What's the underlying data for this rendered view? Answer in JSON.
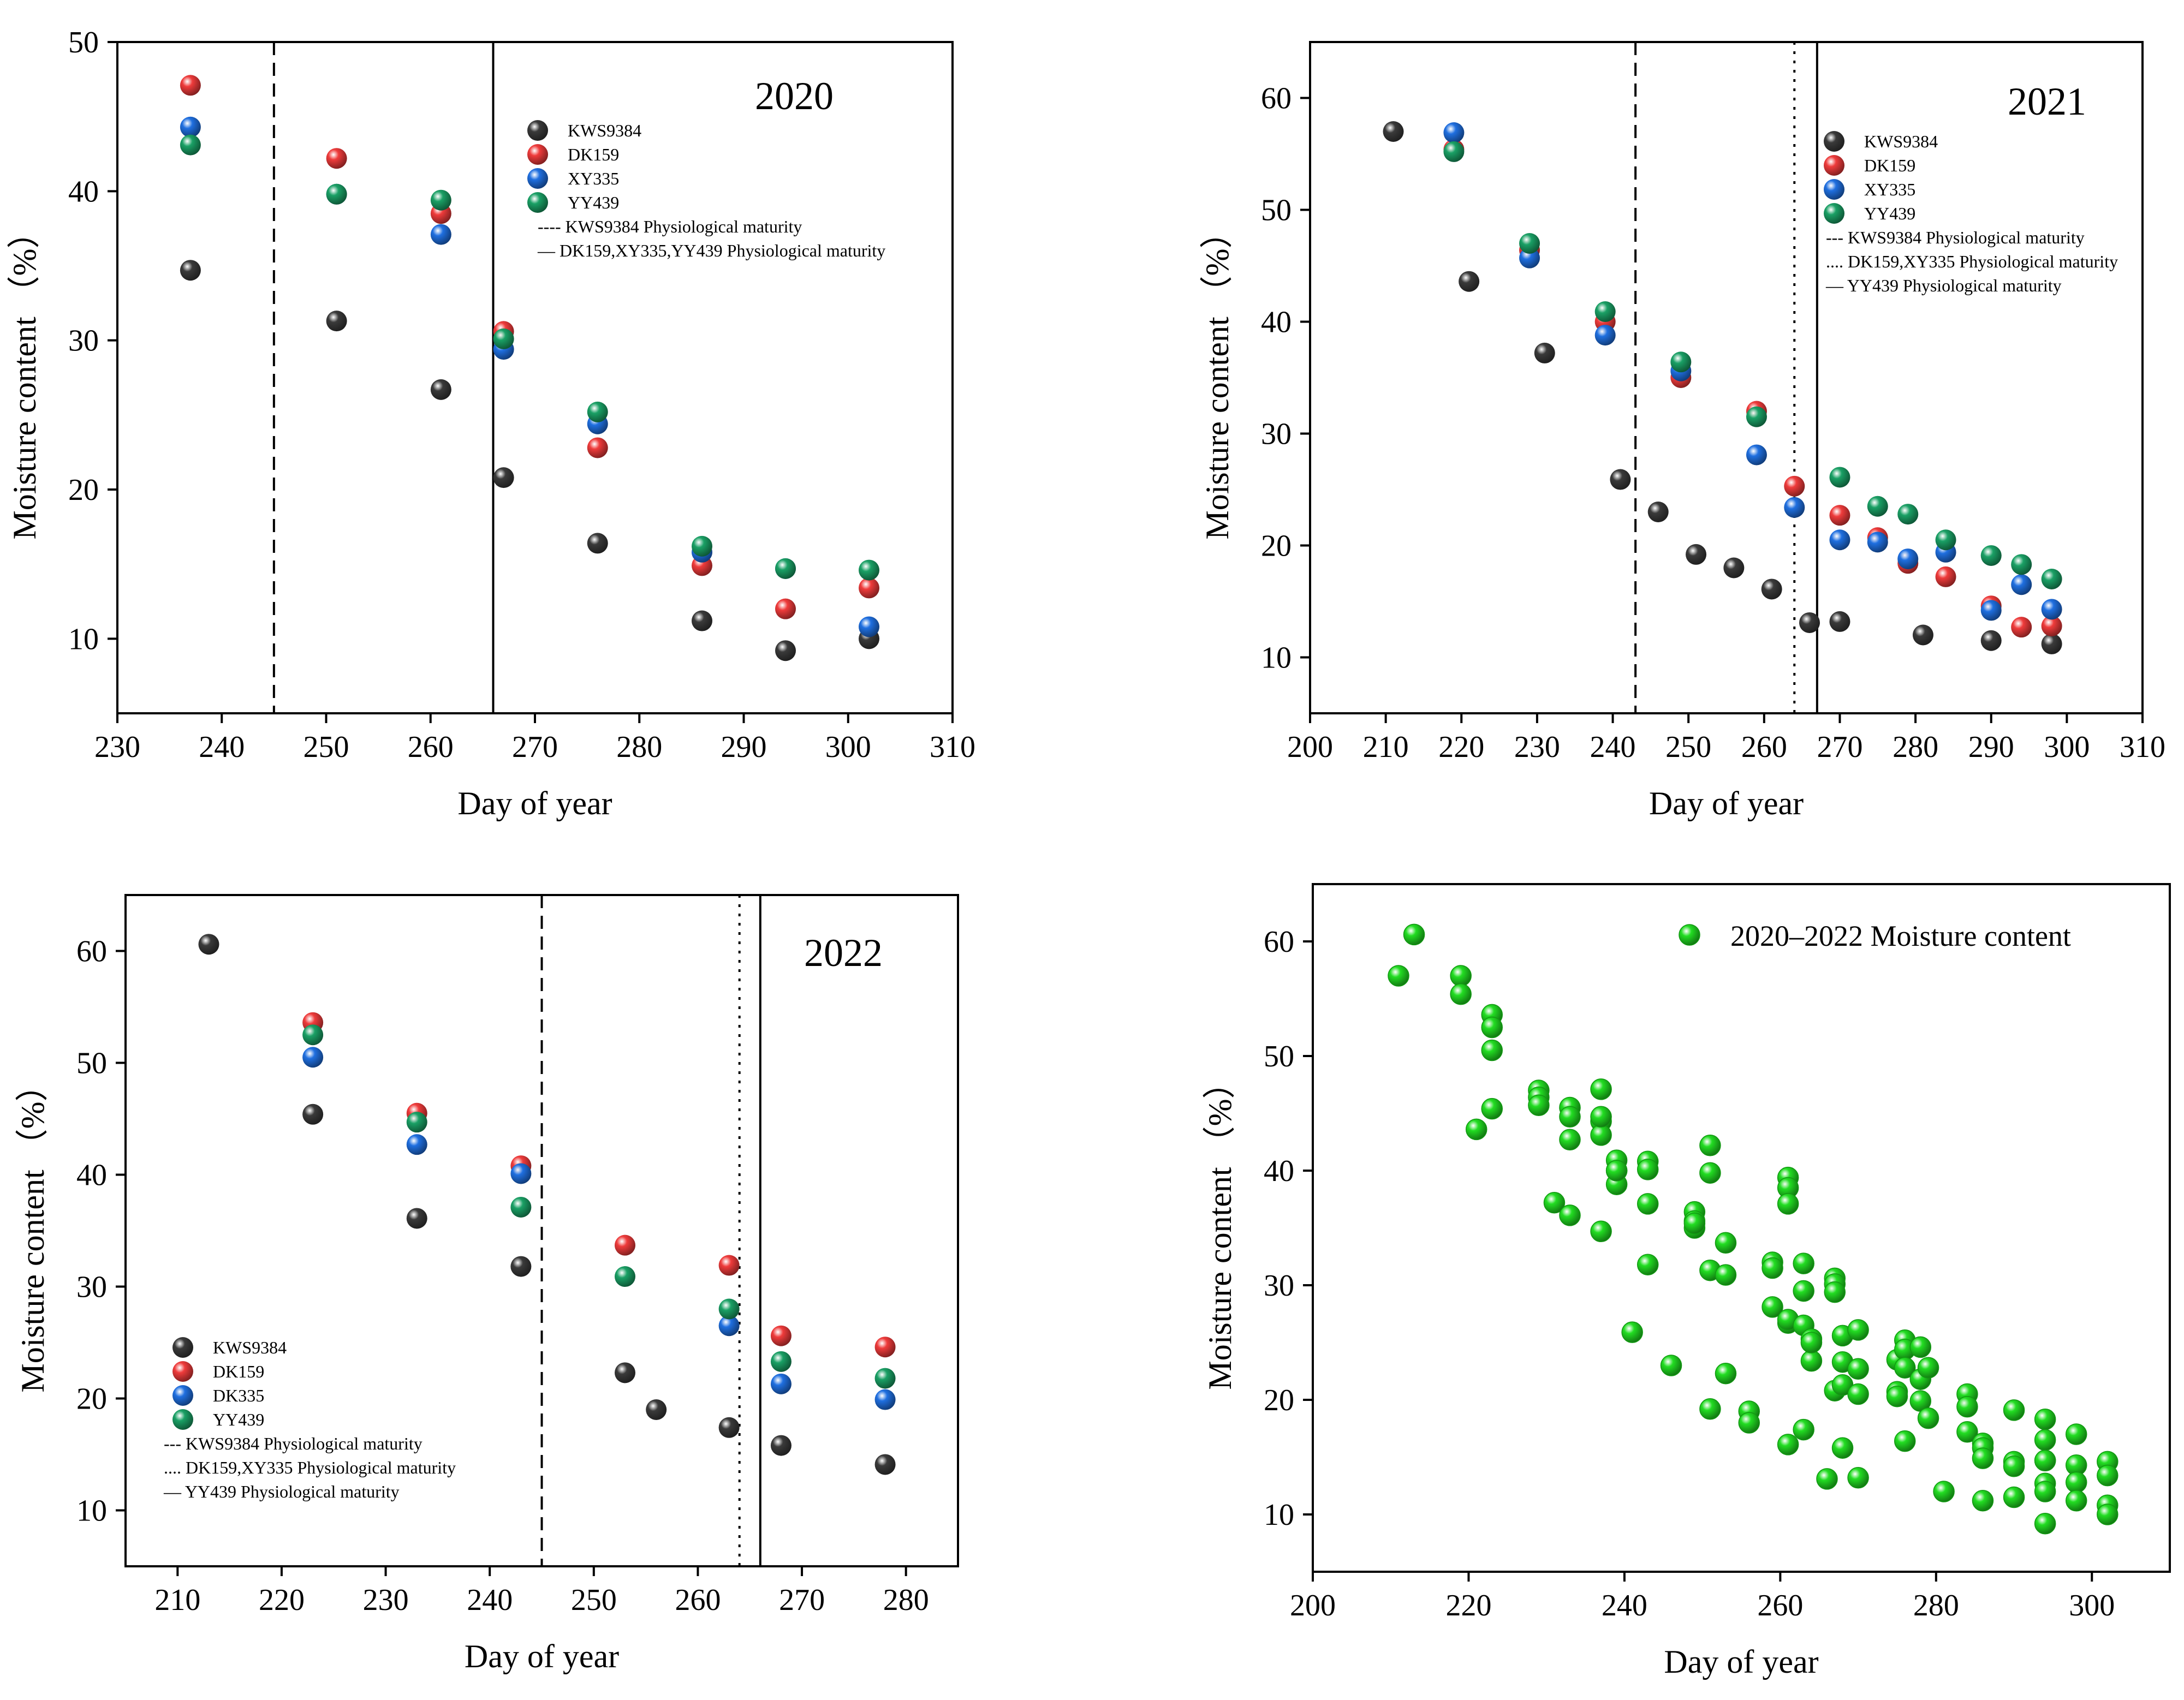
{
  "colors": {
    "KWS9384": "#3a3a3a",
    "DK159": "#ef3b3b",
    "XY335": "#1f6fe0",
    "DK335": "#1f6fe0",
    "YY439": "#1aa065",
    "combined": "#22dd22"
  },
  "chart_data": [
    {
      "type": "scatter",
      "year_label": "2020",
      "xlabel": "Day of year",
      "ylabel": "Moisture content （%）",
      "xlim": [
        230,
        310
      ],
      "ylim": [
        5,
        50
      ],
      "xticks": [
        "230",
        "240",
        "250",
        "260",
        "270",
        "280",
        "290",
        "300",
        "310"
      ],
      "yticks": [
        "10",
        "20",
        "30",
        "40",
        "50"
      ],
      "legend_position": "upper-right",
      "series": [
        {
          "name": "KWS9384",
          "x": [
            237,
            251,
            261,
            267,
            276,
            286,
            294,
            302
          ],
          "y": [
            34.7,
            31.3,
            26.7,
            20.8,
            16.4,
            11.2,
            9.2,
            10.0
          ]
        },
        {
          "name": "DK159",
          "x": [
            237,
            251,
            261,
            267,
            276,
            286,
            294,
            302
          ],
          "y": [
            47.1,
            42.2,
            38.5,
            30.6,
            22.8,
            14.9,
            12.0,
            13.4
          ]
        },
        {
          "name": "XY335",
          "x": [
            237,
            251,
            261,
            267,
            276,
            286,
            294,
            302
          ],
          "y": [
            44.3,
            39.8,
            37.1,
            29.4,
            24.4,
            15.8,
            14.7,
            10.8
          ]
        },
        {
          "name": "YY439",
          "x": [
            237,
            251,
            261,
            267,
            276,
            286,
            294,
            302
          ],
          "y": [
            43.1,
            39.8,
            39.4,
            30.1,
            25.2,
            16.2,
            14.7,
            14.6
          ]
        }
      ],
      "vlines": [
        {
          "x": 245,
          "style": "dashed",
          "label": "---- KWS9384 Physiological maturity"
        },
        {
          "x": 266,
          "style": "solid",
          "label": "— DK159,XY335,YY439 Physiological maturity"
        }
      ]
    },
    {
      "type": "scatter",
      "year_label": "2021",
      "xlabel": "Day of year",
      "ylabel": "Moisture content （%）",
      "xlim": [
        200,
        310
      ],
      "ylim": [
        5,
        65
      ],
      "xticks": [
        "200",
        "210",
        "220",
        "230",
        "240",
        "250",
        "260",
        "270",
        "280",
        "290",
        "300",
        "310"
      ],
      "yticks": [
        "10",
        "20",
        "30",
        "40",
        "50",
        "60"
      ],
      "legend_position": "upper-right",
      "series": [
        {
          "name": "KWS9384",
          "x": [
            211,
            221,
            231,
            241,
            246,
            251,
            256,
            261,
            266,
            270,
            281,
            290,
            298
          ],
          "y": [
            57.0,
            43.6,
            37.2,
            25.9,
            23.0,
            19.2,
            18.0,
            16.1,
            13.1,
            13.2,
            12.0,
            11.5,
            11.2
          ]
        },
        {
          "name": "DK159",
          "x": [
            219,
            229,
            239,
            249,
            259,
            264,
            270,
            275,
            279,
            284,
            290,
            294,
            298
          ],
          "y": [
            55.4,
            46.4,
            40.0,
            35.0,
            32.0,
            25.3,
            22.7,
            20.7,
            18.4,
            17.2,
            14.6,
            12.7,
            12.8
          ]
        },
        {
          "name": "XY335",
          "x": [
            219,
            229,
            239,
            249,
            259,
            264,
            270,
            275,
            279,
            284,
            290,
            294,
            298
          ],
          "y": [
            56.9,
            45.7,
            38.8,
            35.6,
            28.1,
            23.4,
            20.5,
            20.3,
            18.8,
            19.4,
            14.2,
            16.5,
            14.3
          ]
        },
        {
          "name": "YY439",
          "x": [
            219,
            229,
            239,
            249,
            259,
            270,
            275,
            279,
            284,
            290,
            294,
            298
          ],
          "y": [
            55.2,
            47.0,
            40.9,
            36.4,
            31.5,
            26.1,
            23.5,
            22.8,
            20.5,
            19.1,
            18.3,
            17.0
          ]
        }
      ],
      "vlines": [
        {
          "x": 243,
          "style": "dashed",
          "label": "--- KWS9384 Physiological maturity"
        },
        {
          "x": 264,
          "style": "dotted",
          "label": ".... DK159,XY335 Physiological maturity"
        },
        {
          "x": 267,
          "style": "solid",
          "label": "— YY439 Physiological maturity"
        }
      ]
    },
    {
      "type": "scatter",
      "year_label": "2022",
      "xlabel": "Day of year",
      "ylabel": "Moisture content （%）",
      "xlim": [
        205,
        285
      ],
      "ylim": [
        5,
        65
      ],
      "xticks": [
        "210",
        "220",
        "230",
        "240",
        "250",
        "260",
        "270",
        "280"
      ],
      "yticks": [
        "10",
        "20",
        "30",
        "40",
        "50",
        "60"
      ],
      "legend_position": "lower-left",
      "series": [
        {
          "name": "KWS9384",
          "x": [
            213,
            223,
            233,
            243,
            253,
            256,
            263,
            268,
            278
          ],
          "y": [
            60.6,
            45.4,
            36.1,
            31.8,
            22.3,
            19.0,
            17.4,
            15.8,
            14.1
          ]
        },
        {
          "name": "DK159",
          "x": [
            223,
            233,
            243,
            253,
            263,
            268,
            278
          ],
          "y": [
            53.6,
            45.5,
            40.8,
            33.7,
            31.9,
            25.6,
            24.6
          ]
        },
        {
          "name": "DK335",
          "x": [
            223,
            233,
            243,
            263,
            268,
            278
          ],
          "y": [
            50.5,
            42.7,
            40.1,
            26.5,
            21.3,
            19.9
          ]
        },
        {
          "name": "YY439",
          "x": [
            223,
            233,
            243,
            253,
            263,
            268,
            278
          ],
          "y": [
            52.5,
            44.7,
            37.1,
            30.9,
            28.0,
            23.3,
            21.8
          ]
        }
      ],
      "vlines": [
        {
          "x": 245,
          "style": "dashed",
          "label": "--- KWS9384 Physiological maturity"
        },
        {
          "x": 264,
          "style": "dotted",
          "label": ".... DK159,XY335 Physiological maturity"
        },
        {
          "x": 266,
          "style": "solid",
          "label": "— YY439 Physiological maturity"
        }
      ]
    },
    {
      "type": "scatter",
      "xlabel": "Day of year",
      "ylabel": "Moisture content （%）",
      "xlim": [
        200,
        310
      ],
      "ylim": [
        5,
        65
      ],
      "xticks": [
        "200",
        "220",
        "240",
        "260",
        "280",
        "300"
      ],
      "yticks": [
        "10",
        "20",
        "30",
        "40",
        "50",
        "60"
      ],
      "legend_position": "upper-right",
      "series": [
        {
          "name": "2020–2022  Moisture content",
          "x": [
            211,
            213,
            219,
            219,
            221,
            223,
            223,
            223,
            223,
            229,
            229,
            229,
            231,
            233,
            233,
            233,
            233,
            237,
            237,
            237,
            237,
            237,
            239,
            239,
            239,
            239,
            241,
            243,
            243,
            243,
            243,
            246,
            249,
            249,
            249,
            249,
            251,
            251,
            251,
            251,
            253,
            253,
            253,
            256,
            256,
            259,
            259,
            259,
            261,
            261,
            261,
            261,
            261,
            261,
            263,
            263,
            263,
            263,
            264,
            264,
            264,
            266,
            267,
            267,
            267,
            267,
            268,
            268,
            268,
            268,
            270,
            270,
            270,
            270,
            275,
            275,
            275,
            276,
            276,
            276,
            276,
            278,
            278,
            278,
            279,
            279,
            281,
            284,
            284,
            284,
            286,
            286,
            286,
            286,
            290,
            290,
            290,
            290,
            294,
            294,
            294,
            294,
            294,
            294,
            294,
            298,
            298,
            298,
            298,
            302,
            302,
            302,
            302
          ],
          "y": [
            57.0,
            60.6,
            57.0,
            55.4,
            43.6,
            53.6,
            52.5,
            50.5,
            45.4,
            47.0,
            46.4,
            45.7,
            37.2,
            45.5,
            44.7,
            42.7,
            36.1,
            47.1,
            44.3,
            43.1,
            34.7,
            44.7,
            40.9,
            40.0,
            38.8,
            40.0,
            25.9,
            40.8,
            40.1,
            37.1,
            31.8,
            23.0,
            36.4,
            35.6,
            35.0,
            35.4,
            42.2,
            39.8,
            31.3,
            19.2,
            33.7,
            30.9,
            22.3,
            19.0,
            18.0,
            32.0,
            31.5,
            28.1,
            39.4,
            38.5,
            37.1,
            26.7,
            16.1,
            27.0,
            31.9,
            29.5,
            26.5,
            17.4,
            25.3,
            23.4,
            25.0,
            13.1,
            30.6,
            30.1,
            29.4,
            20.8,
            25.6,
            23.3,
            21.3,
            15.8,
            26.1,
            22.7,
            20.5,
            13.2,
            23.5,
            20.7,
            20.3,
            25.2,
            24.4,
            22.8,
            16.4,
            24.6,
            21.8,
            19.9,
            18.4,
            22.8,
            12.0,
            20.5,
            19.4,
            17.2,
            16.2,
            15.8,
            14.9,
            11.2,
            19.1,
            14.6,
            14.2,
            11.5,
            18.3,
            16.5,
            14.7,
            14.7,
            12.7,
            12.0,
            9.2,
            17.0,
            14.3,
            12.8,
            11.2,
            14.6,
            13.4,
            10.8,
            10.0
          ]
        }
      ]
    }
  ]
}
